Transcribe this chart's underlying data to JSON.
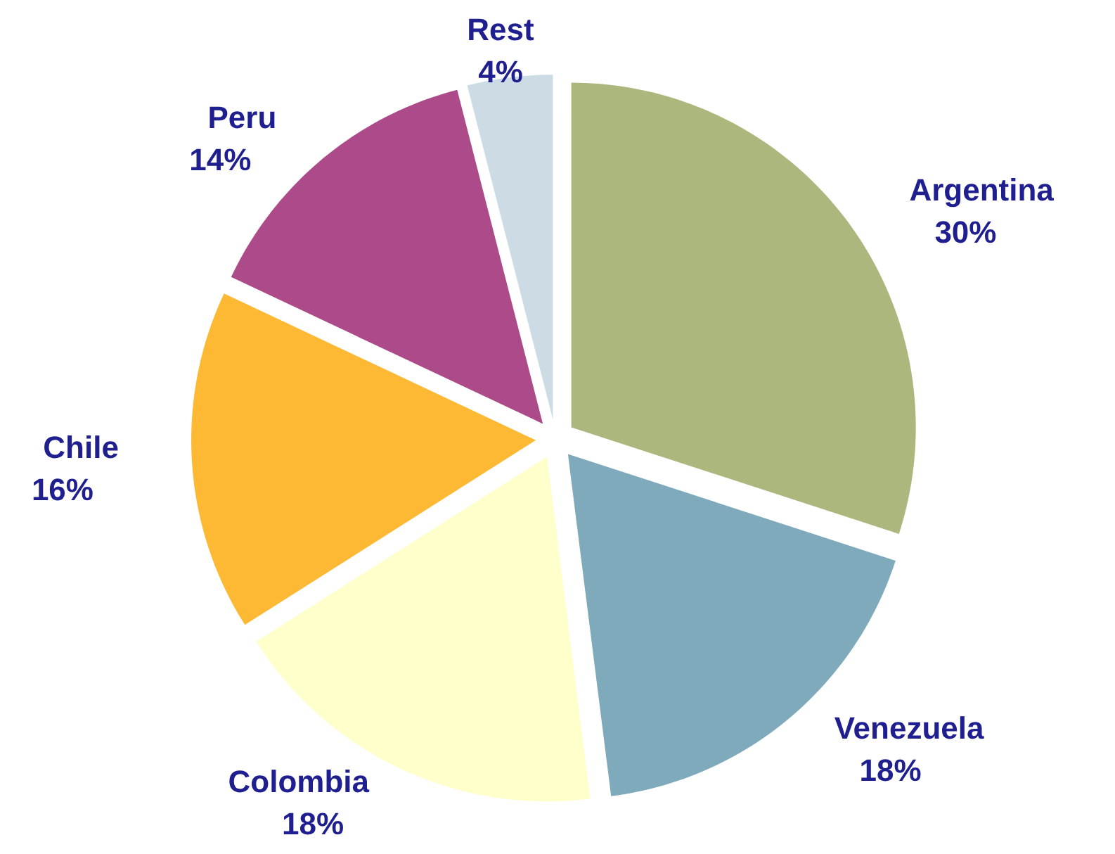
{
  "chart_data": {
    "type": "pie",
    "categories": [
      "Argentina",
      "Venezuela",
      "Colombia",
      "Chile",
      "Peru",
      "Rest"
    ],
    "values": [
      30,
      18,
      18,
      16,
      14,
      4
    ],
    "value_labels": [
      "30%",
      "18%",
      "18%",
      "16%",
      "14%",
      "4%"
    ],
    "colors": [
      "#acb77e",
      "#7faabb",
      "#ffffcc",
      "#fdb933",
      "#ad4b8a",
      "#cddce4"
    ]
  }
}
